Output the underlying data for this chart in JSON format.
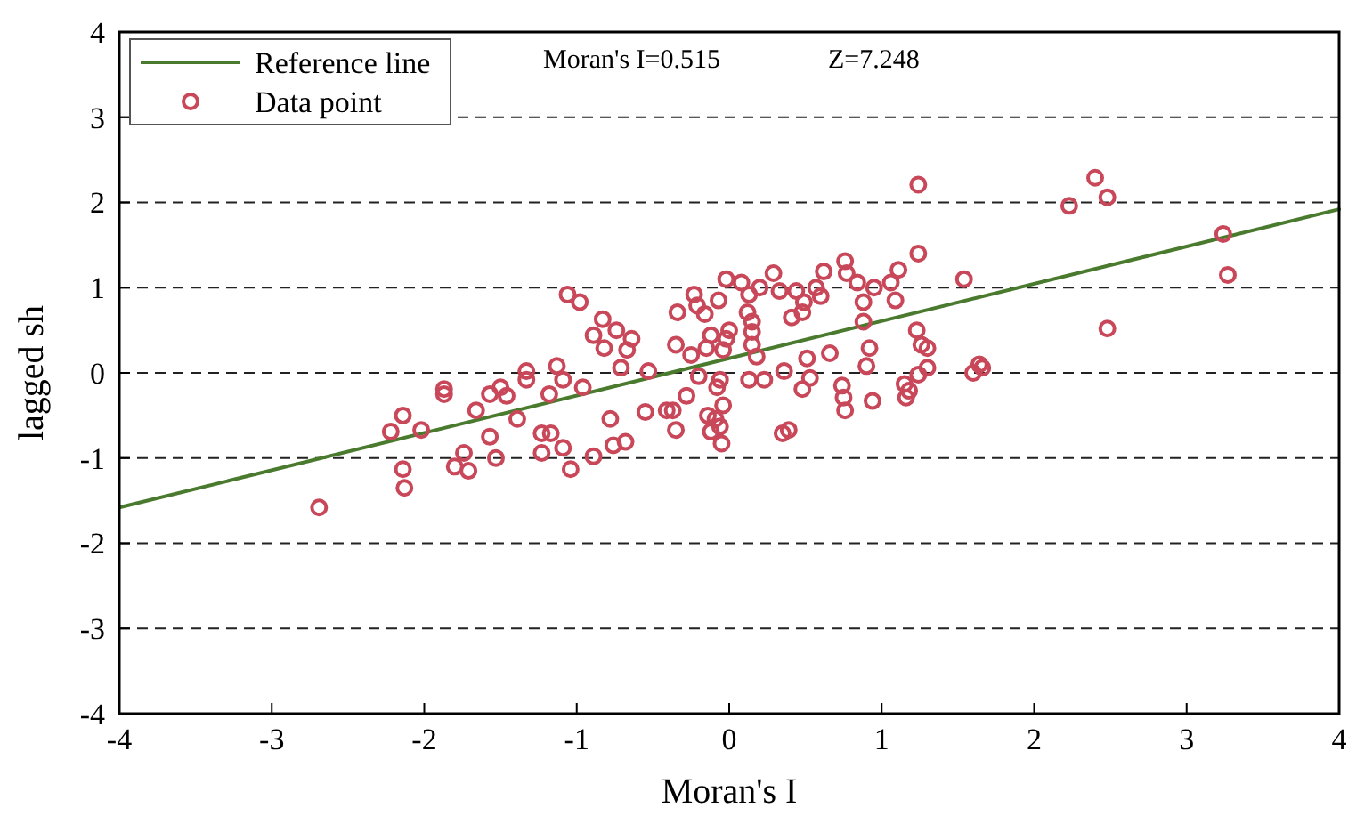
{
  "chart_data": {
    "type": "scatter",
    "xlabel": "Moran's I",
    "ylabel": "lagged sh",
    "xlim": [
      -4,
      4
    ],
    "ylim": [
      -4,
      4
    ],
    "xticks": [
      -4,
      -3,
      -2,
      -1,
      0,
      1,
      2,
      3,
      4
    ],
    "yticks": [
      -4,
      -3,
      -2,
      -1,
      0,
      1,
      2,
      3,
      4
    ],
    "grid": "y",
    "legend": "top left",
    "annotations": [
      "Moran's I=0.515",
      "Z=7.248"
    ],
    "series": [
      {
        "name": "Reference line",
        "type": "line",
        "color": "#4a7a2e",
        "marker": "none",
        "line_style": "solid",
        "x": [
          -4,
          4
        ],
        "values": [
          -1.58,
          1.92
        ]
      },
      {
        "name": "Data point",
        "color": "#c8485a",
        "marker": "circle",
        "x": [
          -2.69,
          -2.22,
          -2.14,
          -2.14,
          -2.13,
          -2.02,
          -1.87,
          -1.87,
          -1.8,
          -1.74,
          -1.71,
          -1.66,
          -1.57,
          -1.57,
          -1.53,
          -1.5,
          -1.46,
          -1.39,
          -1.33,
          -1.33,
          -1.23,
          -1.23,
          -1.18,
          -1.17,
          -1.13,
          -1.09,
          -1.09,
          -1.06,
          -1.04,
          -0.98,
          -0.96,
          -0.89,
          -0.89,
          -0.83,
          -0.82,
          -0.78,
          -0.76,
          -0.74,
          1.24,
          1.24,
          -0.64,
          -0.67,
          -0.71,
          -0.53,
          -0.68,
          -0.55,
          -0.41,
          -0.37,
          -0.35,
          -0.28,
          -0.35,
          -0.34,
          -0.23,
          -0.21,
          -0.16,
          -0.25,
          -0.2,
          -0.12,
          -0.15,
          -0.07,
          -0.02,
          -0.02,
          0.0,
          -0.04,
          -0.06,
          -0.08,
          -0.14,
          -0.09,
          -0.04,
          -0.06,
          -0.12,
          -0.05,
          0.08,
          0.13,
          0.12,
          0.15,
          0.15,
          0.15,
          0.18,
          0.13,
          0.2,
          0.23,
          0.29,
          0.33,
          0.36,
          0.35,
          0.39,
          0.44,
          0.48,
          0.41,
          0.49,
          0.51,
          0.53,
          0.48,
          0.57,
          0.6,
          0.62,
          0.66,
          0.76,
          0.77,
          0.74,
          0.75,
          0.76,
          0.84,
          0.88,
          0.88,
          0.9,
          0.94,
          0.92,
          0.95,
          1.06,
          1.11,
          1.09,
          1.15,
          1.16,
          1.18,
          1.23,
          1.26,
          1.3,
          1.24,
          1.3,
          1.54,
          2.23,
          2.4,
          2.48,
          2.48,
          3.24,
          3.27,
          1.6,
          1.64,
          1.66
        ],
        "values": [
          -1.58,
          -0.69,
          -0.5,
          -1.13,
          -1.35,
          -0.67,
          -0.19,
          -0.25,
          -1.1,
          -0.94,
          -1.15,
          -0.44,
          -0.75,
          -0.25,
          -1.0,
          -0.17,
          -0.27,
          -0.54,
          0.02,
          -0.08,
          -0.71,
          -0.94,
          -0.25,
          -0.71,
          0.08,
          -0.88,
          -0.08,
          0.92,
          -1.13,
          0.83,
          -0.17,
          -0.98,
          0.44,
          0.63,
          0.29,
          -0.54,
          -0.85,
          0.5,
          2.21,
          1.4,
          0.4,
          0.27,
          0.06,
          0.02,
          -0.81,
          -0.46,
          -0.44,
          -0.44,
          -0.67,
          -0.27,
          0.33,
          0.71,
          0.92,
          0.79,
          0.69,
          0.21,
          -0.04,
          0.44,
          0.29,
          0.85,
          1.1,
          0.4,
          0.5,
          0.27,
          -0.08,
          -0.17,
          -0.5,
          -0.54,
          -0.38,
          -0.63,
          -0.69,
          -0.83,
          1.06,
          0.92,
          0.71,
          0.6,
          0.48,
          0.33,
          0.19,
          -0.08,
          1.0,
          -0.08,
          1.17,
          0.96,
          0.02,
          -0.71,
          -0.67,
          0.96,
          0.71,
          0.65,
          0.83,
          0.17,
          -0.06,
          -0.19,
          1.0,
          0.9,
          1.19,
          0.23,
          1.31,
          1.17,
          -0.15,
          -0.29,
          -0.44,
          1.06,
          0.83,
          0.6,
          0.08,
          -0.33,
          0.29,
          1.0,
          1.06,
          1.21,
          0.85,
          -0.13,
          -0.29,
          -0.21,
          0.5,
          0.33,
          0.29,
          -0.02,
          0.06,
          1.1,
          1.96,
          2.29,
          2.06,
          0.52,
          1.63,
          1.15,
          0.0,
          0.1,
          0.06
        ]
      }
    ]
  }
}
